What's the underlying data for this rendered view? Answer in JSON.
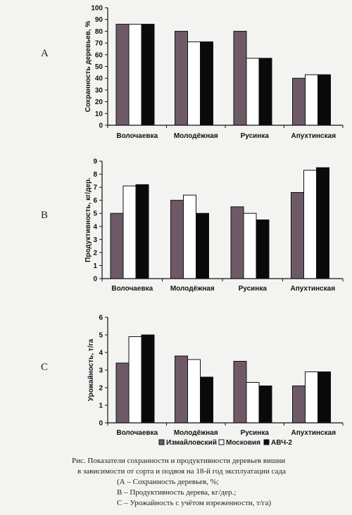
{
  "colors": {
    "series": [
      "#6e5a66",
      "#ffffff",
      "#0a0a0a"
    ],
    "axis": "#111111",
    "background": "#f3f3f1"
  },
  "legend": {
    "placement": "bottom-center",
    "items": [
      "Измайловский",
      "Московия",
      "АВЧ-2"
    ]
  },
  "caption": {
    "line1": "Рис. Показатели сохранности и продуктивности деревьев вишни",
    "line2": "в зависимости от сорта и подвоя на 18-й год эксплуатации сада",
    "line3": "(А – Сохранность деревьев, %;",
    "line4": "В – Продуктивность дерева, кг/дер.;",
    "line5": "С – Урожайность с учётом изреженности, т/га)"
  },
  "chart_data": [
    {
      "panel": "A",
      "type": "bar",
      "ylabel": "Сохранность деревьев, %",
      "ylim": [
        0,
        100
      ],
      "yticks": [
        "0",
        "10",
        "20",
        "30",
        "40",
        "50",
        "60",
        "70",
        "80",
        "90",
        "100"
      ],
      "grid": false,
      "categories": [
        "Волочаевка",
        "Молодёжная",
        "Русинка",
        "Апухтинская"
      ],
      "series": [
        {
          "name": "Измайловский",
          "values": [
            86,
            80,
            80,
            40
          ]
        },
        {
          "name": "Московия",
          "values": [
            86,
            71,
            57,
            43
          ]
        },
        {
          "name": "АВЧ-2",
          "values": [
            86,
            71,
            57,
            43
          ]
        }
      ]
    },
    {
      "panel": "B",
      "type": "bar",
      "ylabel": "Продуктивность, кг/дер.",
      "ylim": [
        0,
        9
      ],
      "yticks": [
        "0",
        "1",
        "2",
        "3",
        "4",
        "5",
        "6",
        "7",
        "8",
        "9"
      ],
      "grid": false,
      "categories": [
        "Волочаевка",
        "Молодёжная",
        "Русинка",
        "Апухтинская"
      ],
      "series": [
        {
          "name": "Измайловский",
          "values": [
            5.0,
            6.0,
            5.5,
            6.6
          ]
        },
        {
          "name": "Московия",
          "values": [
            7.1,
            6.4,
            5.0,
            8.3
          ]
        },
        {
          "name": "АВЧ-2",
          "values": [
            7.2,
            5.0,
            4.5,
            8.5
          ]
        }
      ]
    },
    {
      "panel": "C",
      "type": "bar",
      "ylabel": "Урожайность, т/га",
      "ylim": [
        0,
        6
      ],
      "yticks": [
        "0",
        "1",
        "2",
        "3",
        "4",
        "5",
        "6"
      ],
      "grid": false,
      "categories": [
        "Волочаевка",
        "Молодёжная",
        "Русинка",
        "Апухтинская"
      ],
      "series": [
        {
          "name": "Измайловский",
          "values": [
            3.4,
            3.8,
            3.5,
            2.1
          ]
        },
        {
          "name": "Московия",
          "values": [
            4.9,
            3.6,
            2.3,
            2.9
          ]
        },
        {
          "name": "АВЧ-2",
          "values": [
            5.0,
            2.6,
            2.1,
            2.9
          ]
        }
      ]
    }
  ]
}
